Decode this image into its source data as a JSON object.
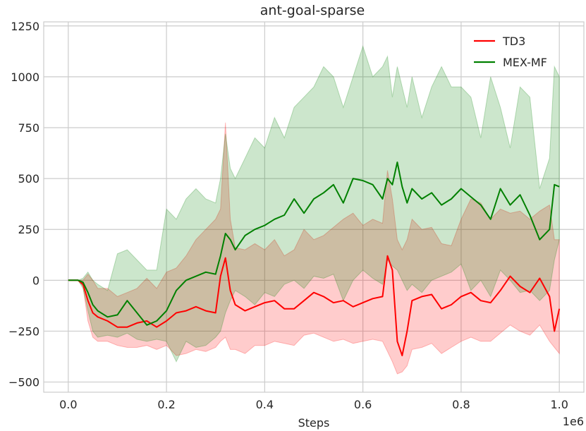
{
  "chart_data": {
    "type": "line",
    "title": "ant-goal-sparse",
    "xlabel": "Steps",
    "ylabel": "",
    "x_offset_label": "1e6",
    "xlim": [
      -0.05,
      1.05
    ],
    "ylim": [
      -550,
      1270
    ],
    "x_ticks": [
      0.0,
      0.2,
      0.4,
      0.6,
      0.8,
      1.0
    ],
    "x_tick_labels": [
      "0.0",
      "0.2",
      "0.4",
      "0.6",
      "0.8",
      "1.0"
    ],
    "y_ticks": [
      -500,
      -250,
      0,
      250,
      500,
      750,
      1000,
      1250
    ],
    "y_tick_labels": [
      "−500",
      "−250",
      "0",
      "250",
      "500",
      "750",
      "1000",
      "1250"
    ],
    "grid": true,
    "legend_position": "top-right",
    "series": [
      {
        "name": "TD3",
        "color": "#ff0000",
        "x": [
          0.0,
          0.02,
          0.03,
          0.04,
          0.05,
          0.06,
          0.08,
          0.1,
          0.12,
          0.14,
          0.16,
          0.18,
          0.2,
          0.22,
          0.24,
          0.26,
          0.28,
          0.3,
          0.31,
          0.32,
          0.33,
          0.34,
          0.36,
          0.38,
          0.4,
          0.42,
          0.44,
          0.46,
          0.48,
          0.5,
          0.52,
          0.54,
          0.56,
          0.58,
          0.6,
          0.62,
          0.64,
          0.65,
          0.66,
          0.67,
          0.68,
          0.69,
          0.7,
          0.72,
          0.74,
          0.76,
          0.78,
          0.8,
          0.82,
          0.84,
          0.86,
          0.88,
          0.9,
          0.92,
          0.94,
          0.96,
          0.98,
          0.99,
          1.0
        ],
        "y": [
          0,
          0,
          -20,
          -100,
          -160,
          -180,
          -200,
          -230,
          -230,
          -210,
          -200,
          -230,
          -200,
          -160,
          -150,
          -130,
          -150,
          -160,
          20,
          110,
          -50,
          -120,
          -150,
          -130,
          -110,
          -100,
          -140,
          -140,
          -100,
          -60,
          -80,
          -110,
          -100,
          -130,
          -110,
          -90,
          -80,
          120,
          50,
          -300,
          -370,
          -250,
          -100,
          -80,
          -70,
          -140,
          -120,
          -80,
          -60,
          -100,
          -110,
          -50,
          20,
          -30,
          -60,
          10,
          -80,
          -250,
          -140
        ],
        "band_upper": [
          0,
          0,
          0,
          30,
          0,
          -40,
          -40,
          -80,
          -60,
          -40,
          10,
          -40,
          40,
          60,
          120,
          200,
          250,
          300,
          350,
          775,
          300,
          160,
          150,
          180,
          150,
          200,
          120,
          150,
          250,
          200,
          220,
          260,
          300,
          330,
          270,
          300,
          280,
          540,
          400,
          200,
          150,
          200,
          300,
          250,
          260,
          180,
          170,
          300,
          400,
          380,
          300,
          350,
          330,
          340,
          300,
          340,
          370,
          200,
          200
        ],
        "band_lower": [
          0,
          0,
          -30,
          -200,
          -280,
          -300,
          -300,
          -320,
          -330,
          -330,
          -320,
          -340,
          -320,
          -370,
          -360,
          -340,
          -350,
          -330,
          -300,
          -280,
          -340,
          -340,
          -360,
          -320,
          -320,
          -300,
          -310,
          -320,
          -270,
          -260,
          -280,
          -300,
          -290,
          -310,
          -300,
          -290,
          -300,
          -350,
          -400,
          -460,
          -450,
          -420,
          -340,
          -330,
          -310,
          -360,
          -330,
          -300,
          -280,
          -300,
          -300,
          -260,
          -220,
          -250,
          -270,
          -220,
          -300,
          -330,
          -360
        ]
      },
      {
        "name": "MEX-MF",
        "color": "#008000",
        "x": [
          0.0,
          0.02,
          0.03,
          0.04,
          0.05,
          0.06,
          0.08,
          0.1,
          0.12,
          0.14,
          0.16,
          0.18,
          0.2,
          0.22,
          0.24,
          0.26,
          0.28,
          0.3,
          0.31,
          0.32,
          0.33,
          0.34,
          0.36,
          0.38,
          0.4,
          0.42,
          0.44,
          0.46,
          0.48,
          0.5,
          0.52,
          0.54,
          0.56,
          0.58,
          0.6,
          0.62,
          0.64,
          0.65,
          0.66,
          0.67,
          0.68,
          0.69,
          0.7,
          0.72,
          0.74,
          0.76,
          0.78,
          0.8,
          0.82,
          0.84,
          0.86,
          0.88,
          0.9,
          0.92,
          0.94,
          0.96,
          0.98,
          0.99,
          1.0
        ],
        "y": [
          0,
          0,
          -10,
          -60,
          -120,
          -150,
          -180,
          -170,
          -100,
          -160,
          -220,
          -200,
          -150,
          -50,
          0,
          20,
          40,
          30,
          120,
          230,
          200,
          150,
          220,
          250,
          270,
          300,
          320,
          400,
          330,
          400,
          430,
          470,
          380,
          500,
          490,
          470,
          400,
          500,
          470,
          580,
          460,
          380,
          450,
          400,
          430,
          370,
          400,
          450,
          410,
          370,
          300,
          450,
          370,
          420,
          320,
          200,
          250,
          470,
          460
        ],
        "band_upper": [
          0,
          0,
          10,
          40,
          0,
          -20,
          -50,
          130,
          150,
          100,
          50,
          50,
          350,
          300,
          400,
          450,
          400,
          380,
          500,
          720,
          550,
          500,
          600,
          700,
          650,
          800,
          700,
          850,
          900,
          950,
          1050,
          1000,
          850,
          1000,
          1150,
          1000,
          1050,
          1100,
          900,
          1050,
          950,
          850,
          1000,
          800,
          950,
          1050,
          950,
          950,
          900,
          700,
          1000,
          850,
          650,
          950,
          900,
          450,
          600,
          1050,
          1000
        ],
        "band_lower": [
          0,
          0,
          -40,
          -150,
          -250,
          -280,
          -270,
          -280,
          -260,
          -290,
          -300,
          -290,
          -300,
          -400,
          -300,
          -330,
          -320,
          -280,
          -250,
          -160,
          -100,
          -50,
          -80,
          -120,
          -60,
          -80,
          -20,
          0,
          -40,
          20,
          10,
          30,
          -100,
          0,
          50,
          10,
          -20,
          100,
          70,
          50,
          0,
          -50,
          -20,
          -60,
          0,
          20,
          40,
          80,
          -50,
          0,
          -80,
          50,
          0,
          -60,
          -50,
          -100,
          -50,
          100,
          200
        ]
      }
    ]
  }
}
